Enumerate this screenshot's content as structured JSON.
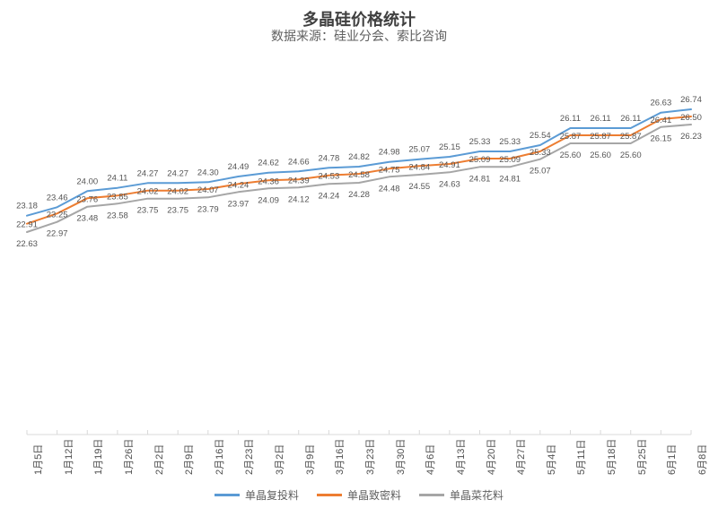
{
  "chart": {
    "type": "line",
    "title": "多晶硅价格统计",
    "subtitle": "数据来源：硅业分会、索比咨询",
    "title_fontsize": 18,
    "subtitle_fontsize": 14,
    "background_color": "#ffffff",
    "grid_color": "#d9d9d9",
    "text_color": "#555555",
    "line_width": 2,
    "x_labels": [
      "1月5日",
      "1月12日",
      "1月19日",
      "1月26日",
      "2月2日",
      "2月9日",
      "2月16日",
      "2月23日",
      "3月2日",
      "3月9日",
      "3月16日",
      "3月23日",
      "3月30日",
      "4月6日",
      "4月13日",
      "4月20日",
      "4月27日",
      "5月4日",
      "5月11日",
      "5月18日",
      "5月25日",
      "6月1日",
      "6月8日"
    ],
    "x_label_rotation": -90,
    "ylim": [
      22,
      28
    ],
    "series": [
      {
        "name": "单晶复投料",
        "color": "#5b9bd5",
        "values": [
          23.18,
          23.46,
          24.0,
          24.11,
          24.27,
          24.27,
          24.3,
          24.49,
          24.62,
          24.66,
          24.78,
          24.82,
          24.98,
          25.07,
          25.15,
          25.33,
          25.33,
          25.54,
          26.11,
          26.11,
          26.11,
          26.63,
          26.74
        ]
      },
      {
        "name": "单晶致密料",
        "color": "#ed7d31",
        "values": [
          22.91,
          23.25,
          23.76,
          23.85,
          24.02,
          24.02,
          24.07,
          24.24,
          24.36,
          24.39,
          24.53,
          24.58,
          24.75,
          24.84,
          24.91,
          25.09,
          25.09,
          25.33,
          25.87,
          25.87,
          25.87,
          26.41,
          26.5
        ]
      },
      {
        "name": "单晶菜花料",
        "color": "#a6a6a6",
        "values": [
          22.63,
          22.97,
          23.48,
          23.58,
          23.75,
          23.75,
          23.79,
          23.97,
          24.09,
          24.12,
          24.24,
          24.28,
          24.48,
          24.55,
          24.63,
          24.81,
          24.81,
          25.07,
          25.6,
          25.6,
          25.6,
          26.15,
          26.23
        ]
      }
    ],
    "legend_position": "bottom"
  }
}
